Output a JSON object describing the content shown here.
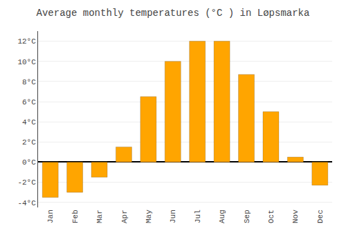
{
  "chart_data": {
    "type": "bar",
    "title": "Average monthly temperatures (°C ) in Løpsmarka",
    "categories": [
      "Jan",
      "Feb",
      "Mar",
      "Apr",
      "May",
      "Jun",
      "Jul",
      "Aug",
      "Sep",
      "Oct",
      "Nov",
      "Dec"
    ],
    "values": [
      -3.5,
      -3.0,
      -1.5,
      1.5,
      6.5,
      10.0,
      12.0,
      12.0,
      8.7,
      5.0,
      0.5,
      -2.3
    ],
    "color": "#FFA500",
    "ylim": [
      -4.5,
      13.0
    ],
    "yticks": [
      {
        "value": 12,
        "label": "12°C"
      },
      {
        "value": 10,
        "label": "10°C"
      },
      {
        "value": 8,
        "label": "8°C"
      },
      {
        "value": 6,
        "label": "6°C"
      },
      {
        "value": 4,
        "label": "4°C"
      },
      {
        "value": 2,
        "label": "2°C"
      },
      {
        "value": 0,
        "label": "0°C"
      },
      {
        "value": -2,
        "label": "-2°C"
      },
      {
        "value": -4,
        "label": "-4°C"
      }
    ],
    "grid": true
  }
}
